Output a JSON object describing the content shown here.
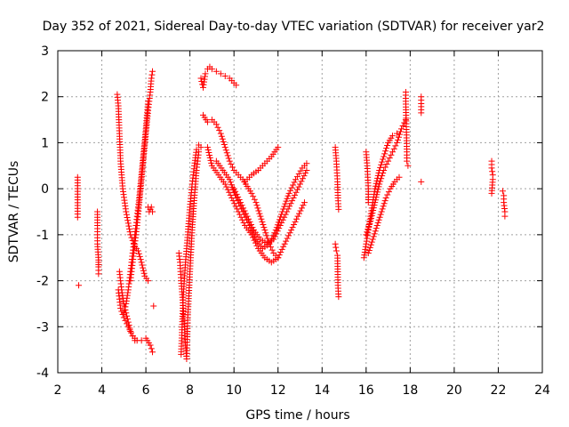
{
  "chart_data": {
    "type": "scatter",
    "title": "Day 352 of 2021, Sidereal Day-to-day VTEC variation (SDTVAR) for receiver yar2",
    "xlabel": "GPS time / hours",
    "ylabel": "SDTVAR / TECUs",
    "xlim": [
      2,
      24
    ],
    "ylim": [
      -4,
      3
    ],
    "xticks": [
      2,
      4,
      6,
      8,
      10,
      12,
      14,
      16,
      18,
      20,
      22,
      24
    ],
    "yticks": [
      -4,
      -3,
      -2,
      -1,
      0,
      1,
      2,
      3
    ],
    "grid": true,
    "marker": "+",
    "color": "#ff0000",
    "series": [
      {
        "name": "s1",
        "x": [
          2.9,
          2.9,
          2.9,
          2.95
        ],
        "y": [
          0.25,
          -0.55,
          -0.62,
          -2.1
        ]
      },
      {
        "name": "s2",
        "x": [
          3.8,
          3.8,
          3.8,
          3.8,
          3.85,
          3.85,
          3.85,
          3.85,
          3.85
        ],
        "y": [
          -0.5,
          -0.8,
          -1.0,
          -1.2,
          -1.55,
          -1.6,
          -1.65,
          -1.7,
          -1.85
        ]
      },
      {
        "name": "s3",
        "x": [
          4.7,
          4.75,
          4.8,
          4.85,
          4.95,
          5.1,
          5.3,
          5.5,
          5.65,
          5.8,
          5.95,
          6.1
        ],
        "y": [
          2.05,
          1.8,
          1.2,
          0.6,
          0.0,
          -0.5,
          -1.0,
          -1.25,
          -1.35,
          -1.6,
          -1.9,
          -2.0
        ]
      },
      {
        "name": "s4",
        "x": [
          4.75,
          4.85,
          5.0,
          5.2,
          5.4,
          5.6,
          5.8,
          6.0,
          6.2,
          6.3
        ],
        "y": [
          -2.2,
          -2.6,
          -2.8,
          -3.0,
          -3.2,
          -3.3,
          -3.3,
          -3.25,
          -3.4,
          -3.55
        ]
      },
      {
        "name": "s5",
        "x": [
          4.8,
          4.9,
          5.0,
          5.1,
          5.2,
          5.3,
          5.4,
          5.5
        ],
        "y": [
          -1.8,
          -2.2,
          -2.5,
          -2.7,
          -2.9,
          -3.1,
          -3.2,
          -3.3
        ]
      },
      {
        "name": "s6",
        "x": [
          5.0,
          5.1,
          5.2,
          5.3,
          5.4,
          5.5,
          5.6,
          5.7,
          5.8,
          5.9,
          6.0,
          6.1
        ],
        "y": [
          -2.7,
          -2.5,
          -2.2,
          -1.8,
          -1.4,
          -1.0,
          -0.6,
          -0.2,
          0.3,
          0.8,
          1.3,
          1.9
        ]
      },
      {
        "name": "s7",
        "x": [
          5.3,
          5.4,
          5.5,
          5.6,
          5.7,
          5.8,
          5.9,
          6.0,
          6.1,
          6.2,
          6.25,
          6.3
        ],
        "y": [
          -2.0,
          -1.6,
          -1.2,
          -0.8,
          -0.3,
          0.2,
          0.7,
          1.2,
          1.7,
          2.1,
          2.4,
          2.55
        ]
      },
      {
        "name": "s8",
        "x": [
          6.1,
          6.15,
          6.2,
          6.25,
          6.3,
          6.35
        ],
        "y": [
          -0.4,
          -0.5,
          -0.45,
          -0.4,
          -0.5,
          -2.55
        ]
      },
      {
        "name": "s9",
        "x": [
          7.5,
          7.55,
          7.6,
          7.65,
          7.7,
          7.75,
          7.8,
          7.85,
          7.9,
          8.0,
          8.1,
          8.2,
          8.3,
          8.4,
          8.5
        ],
        "y": [
          -1.4,
          -1.6,
          -2.0,
          -2.3,
          -2.6,
          -3.0,
          -3.4,
          -3.7,
          -2.8,
          -1.8,
          -0.9,
          -0.2,
          0.4,
          0.8,
          0.9
        ]
      },
      {
        "name": "s10",
        "x": [
          7.6,
          7.7,
          7.8,
          7.9,
          8.0,
          8.1,
          8.2,
          8.3,
          8.4
        ],
        "y": [
          -3.6,
          -2.3,
          -1.6,
          -1.0,
          -0.4,
          0.1,
          0.5,
          0.85,
          0.95
        ]
      },
      {
        "name": "s11",
        "x": [
          8.5,
          8.6,
          8.7,
          8.8,
          8.9,
          9.0,
          9.2,
          9.4,
          9.6,
          9.8,
          10.0,
          10.1
        ],
        "y": [
          2.4,
          2.2,
          2.5,
          2.6,
          2.65,
          2.6,
          2.55,
          2.5,
          2.45,
          2.4,
          2.3,
          2.25
        ]
      },
      {
        "name": "s12",
        "x": [
          8.6,
          8.8,
          9.0,
          9.2,
          9.4,
          9.6,
          9.8,
          10.0,
          10.2,
          10.4,
          10.6,
          10.8,
          11.0,
          11.2,
          11.4,
          11.6,
          11.8,
          12.0
        ],
        "y": [
          1.6,
          1.45,
          1.5,
          1.4,
          1.2,
          0.9,
          0.6,
          0.4,
          0.3,
          0.2,
          0.05,
          -0.1,
          -0.3,
          -0.6,
          -0.9,
          -1.2,
          -1.4,
          -1.5
        ]
      },
      {
        "name": "s13",
        "x": [
          8.8,
          9.0,
          9.3,
          9.6,
          9.9,
          10.2,
          10.5,
          10.8,
          11.1,
          11.4,
          11.7,
          12.0,
          12.3,
          12.6,
          12.9,
          13.2
        ],
        "y": [
          0.9,
          0.5,
          0.3,
          0.1,
          -0.2,
          -0.5,
          -0.8,
          -1.0,
          -1.3,
          -1.5,
          -1.6,
          -1.5,
          -1.2,
          -0.9,
          -0.6,
          -0.3
        ]
      },
      {
        "name": "s14",
        "x": [
          9.2,
          9.5,
          9.8,
          10.1,
          10.4,
          10.7,
          11.0,
          11.3,
          11.6,
          11.9,
          12.2,
          12.5,
          12.8,
          13.1,
          13.3
        ],
        "y": [
          0.6,
          0.4,
          0.2,
          -0.2,
          -0.5,
          -0.8,
          -1.1,
          -1.3,
          -1.2,
          -0.9,
          -0.5,
          -0.1,
          0.2,
          0.45,
          0.55
        ]
      },
      {
        "name": "s15",
        "x": [
          10.0,
          10.3,
          10.6,
          10.9,
          11.2,
          11.5,
          11.8,
          12.1,
          12.4,
          12.7,
          13.0,
          13.3
        ],
        "y": [
          0.0,
          -0.3,
          -0.6,
          -0.9,
          -1.1,
          -1.2,
          -1.1,
          -0.8,
          -0.5,
          -0.2,
          0.1,
          0.4
        ]
      },
      {
        "name": "s16",
        "x": [
          10.5,
          10.8,
          11.1,
          11.4,
          11.7,
          12.0
        ],
        "y": [
          0.15,
          0.3,
          0.4,
          0.55,
          0.7,
          0.9
        ]
      },
      {
        "name": "s17",
        "x": [
          14.6,
          14.65,
          14.7,
          14.72,
          14.75
        ],
        "y": [
          0.9,
          0.6,
          0.15,
          -0.2,
          -0.45
        ]
      },
      {
        "name": "s18",
        "x": [
          14.6,
          14.65,
          14.7,
          14.72,
          14.75
        ],
        "y": [
          -1.2,
          -1.35,
          -1.45,
          -2.1,
          -2.35
        ]
      },
      {
        "name": "s19",
        "x": [
          15.9,
          16.0,
          16.2,
          16.4,
          16.6,
          16.8,
          17.0,
          17.2,
          17.4
        ],
        "y": [
          -1.5,
          -1.2,
          -0.6,
          0.0,
          0.4,
          0.7,
          1.0,
          1.15,
          1.2
        ]
      },
      {
        "name": "s20",
        "x": [
          16.0,
          16.2,
          16.4,
          16.6,
          16.8,
          17.0,
          17.2,
          17.4,
          17.6,
          17.8
        ],
        "y": [
          -1.0,
          -0.7,
          -0.3,
          0.1,
          0.4,
          0.6,
          0.8,
          1.0,
          1.3,
          1.5
        ]
      },
      {
        "name": "s21",
        "x": [
          16.1,
          16.3,
          16.5,
          16.7,
          16.9,
          17.1,
          17.3,
          17.5
        ],
        "y": [
          -1.4,
          -1.1,
          -0.8,
          -0.5,
          -0.2,
          0.0,
          0.15,
          0.25
        ]
      },
      {
        "name": "s22",
        "x": [
          16.0,
          16.05,
          16.1,
          16.1
        ],
        "y": [
          0.8,
          0.5,
          0.0,
          -0.3
        ]
      },
      {
        "name": "s23",
        "x": [
          17.8,
          17.8,
          17.85,
          17.85,
          17.9
        ],
        "y": [
          2.1,
          1.9,
          0.8,
          0.6,
          0.5
        ]
      },
      {
        "name": "s24",
        "x": [
          18.5,
          18.5,
          18.5,
          18.5
        ],
        "y": [
          2.0,
          1.85,
          1.65,
          0.15
        ]
      },
      {
        "name": "s25",
        "x": [
          21.7,
          21.7,
          21.75,
          21.75,
          21.7
        ],
        "y": [
          0.6,
          0.45,
          0.3,
          0.2,
          -0.1
        ]
      },
      {
        "name": "s26",
        "x": [
          22.2,
          22.25,
          22.25,
          22.3,
          22.3
        ],
        "y": [
          -0.05,
          -0.15,
          -0.3,
          -0.5,
          -0.6
        ]
      }
    ]
  }
}
